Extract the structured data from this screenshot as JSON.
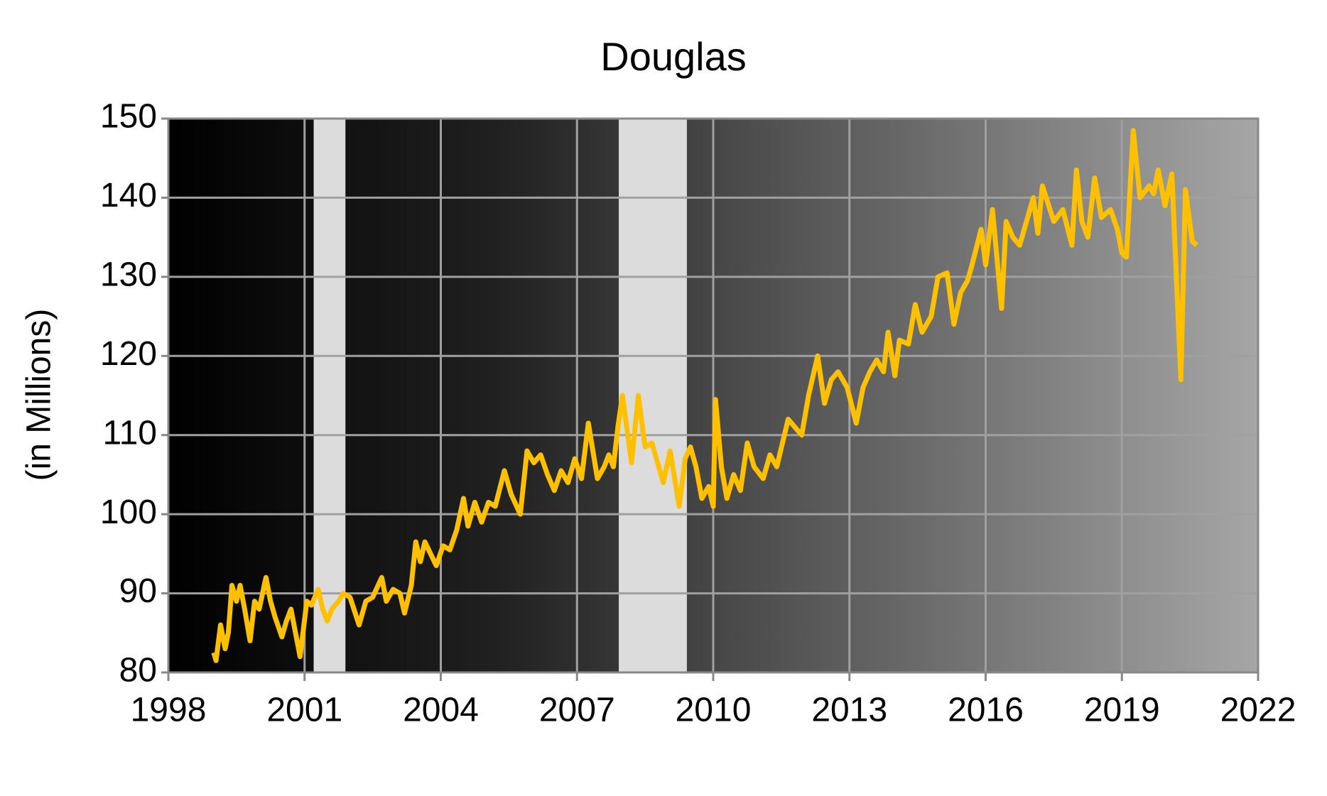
{
  "chart_data": {
    "type": "line",
    "title": "Douglas",
    "ylabel": "(in Millions)",
    "x": [
      1999.0,
      1999.05,
      1999.15,
      1999.25,
      1999.32,
      1999.4,
      1999.5,
      1999.58,
      1999.68,
      1999.8,
      1999.9,
      2000.0,
      2000.15,
      2000.25,
      2000.35,
      2000.5,
      2000.6,
      2000.7,
      2000.8,
      2000.9,
      2001.05,
      2001.15,
      2001.3,
      2001.4,
      2001.5,
      2001.6,
      2001.75,
      2001.85,
      2002.0,
      2002.2,
      2002.35,
      2002.5,
      2002.7,
      2002.8,
      2002.95,
      2003.1,
      2003.2,
      2003.35,
      2003.45,
      2003.55,
      2003.65,
      2003.9,
      2004.05,
      2004.2,
      2004.35,
      2004.5,
      2004.6,
      2004.75,
      2004.9,
      2005.05,
      2005.2,
      2005.4,
      2005.55,
      2005.75,
      2005.9,
      2006.05,
      2006.2,
      2006.35,
      2006.5,
      2006.65,
      2006.8,
      2006.95,
      2007.1,
      2007.25,
      2007.45,
      2007.6,
      2007.7,
      2007.8,
      2007.9,
      2008.0,
      2008.2,
      2008.35,
      2008.5,
      2008.65,
      2008.75,
      2008.9,
      2009.05,
      2009.25,
      2009.38,
      2009.5,
      2009.62,
      2009.75,
      2009.9,
      2010.0,
      2010.05,
      2010.18,
      2010.3,
      2010.45,
      2010.6,
      2010.75,
      2010.9,
      2011.1,
      2011.25,
      2011.4,
      2011.65,
      2011.8,
      2011.95,
      2012.1,
      2012.3,
      2012.45,
      2012.6,
      2012.75,
      2012.95,
      2013.15,
      2013.3,
      2013.45,
      2013.6,
      2013.75,
      2013.85,
      2014.0,
      2014.1,
      2014.3,
      2014.45,
      2014.6,
      2014.8,
      2014.95,
      2015.15,
      2015.3,
      2015.45,
      2015.6,
      2015.7,
      2015.9,
      2016.0,
      2016.15,
      2016.35,
      2016.45,
      2016.6,
      2016.75,
      2016.9,
      2017.05,
      2017.15,
      2017.25,
      2017.5,
      2017.7,
      2017.9,
      2018.0,
      2018.12,
      2018.25,
      2018.4,
      2018.55,
      2018.75,
      2018.9,
      2019.0,
      2019.1,
      2019.25,
      2019.4,
      2019.6,
      2019.7,
      2019.8,
      2019.95,
      2020.1,
      2020.3,
      2020.4,
      2020.55,
      2020.65
    ],
    "series": [
      {
        "name": "Douglas",
        "color": "#ffc000",
        "values": [
          82.5,
          81.5,
          86,
          83,
          85,
          91,
          89,
          91,
          88,
          84,
          89,
          88,
          92,
          89,
          87,
          84.5,
          86.5,
          88,
          85,
          82,
          89,
          88.5,
          90.5,
          88,
          86.5,
          88,
          89,
          90,
          89.5,
          86,
          89,
          89.5,
          92,
          89,
          90.5,
          90,
          87.5,
          91,
          96.5,
          94,
          96.5,
          93.5,
          96,
          95.5,
          98,
          102,
          98.5,
          101.5,
          99,
          101.5,
          101,
          105.5,
          102.5,
          100,
          108,
          106.5,
          107.5,
          105,
          103,
          105.5,
          104,
          107,
          104.5,
          111.5,
          104.5,
          106,
          107.5,
          106,
          111,
          115,
          106.5,
          115,
          108.5,
          109,
          107,
          104,
          108,
          101,
          107,
          108.5,
          106,
          102,
          103.5,
          101,
          114.5,
          106,
          102,
          105,
          103,
          109,
          106,
          104.5,
          107.5,
          106,
          112,
          111,
          110,
          115,
          120,
          114,
          117,
          118,
          116,
          111.5,
          116,
          118,
          119.5,
          118,
          123,
          117.5,
          122,
          121.5,
          126.5,
          123,
          125,
          130,
          130.5,
          124,
          128,
          129.5,
          131.5,
          136,
          131.5,
          138.5,
          126,
          137,
          135,
          134,
          137,
          140,
          135.5,
          141.5,
          137,
          138.5,
          134,
          143.5,
          137,
          135,
          142.5,
          137.5,
          138.5,
          136,
          133,
          132.5,
          148.5,
          140,
          141.5,
          140.5,
          143.5,
          139,
          143,
          117,
          141,
          134.5,
          134
        ]
      }
    ],
    "shaded_regions": [
      [
        2001.2,
        2001.9
      ],
      [
        2007.92,
        2009.42
      ]
    ],
    "xlim": [
      1998,
      2022
    ],
    "xticks": [
      1998,
      2001,
      2004,
      2007,
      2010,
      2013,
      2016,
      2019,
      2022
    ],
    "ylim": [
      80,
      150
    ],
    "yticks": [
      80,
      90,
      100,
      110,
      120,
      130,
      140,
      150
    ],
    "grid": true
  }
}
